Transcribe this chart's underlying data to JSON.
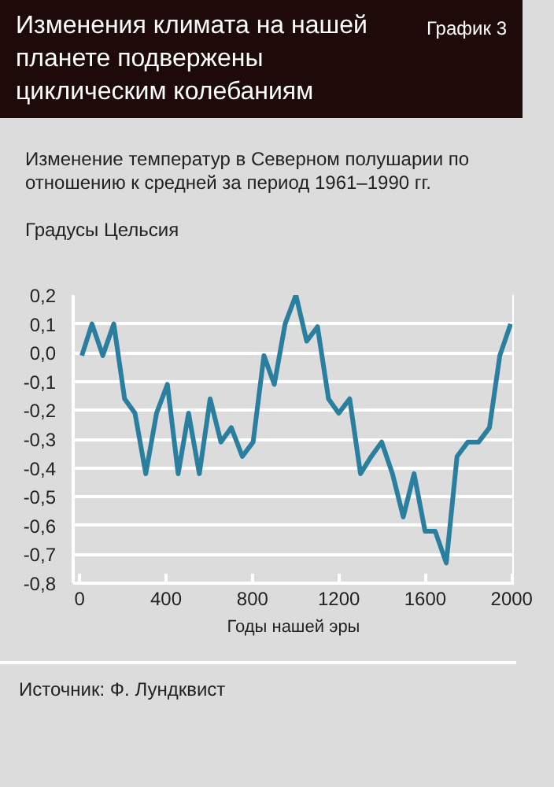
{
  "chart_data": {
    "type": "line",
    "title": "Изменения климата на нашей планете подвержены циклическим колебаниям",
    "subtitle": "Изменение температур в Северном полушарии по отношению к средней за период 1961–1990 гг.",
    "ylabel": "Градусы Цельсия",
    "xlabel": "Годы нашей эры",
    "annotations": [
      "График 3",
      "Источник: Ф. Лундквист"
    ],
    "x": [
      10,
      57,
      107,
      158,
      208,
      256,
      306,
      356,
      406,
      456,
      504,
      554,
      604,
      654,
      702,
      753,
      803,
      853,
      901,
      951,
      1001,
      1051,
      1101,
      1152,
      1199,
      1250,
      1300,
      1350,
      1398,
      1448,
      1498,
      1548,
      1599,
      1646,
      1697,
      1747,
      1797,
      1847,
      1897,
      1945,
      1995
    ],
    "series": [
      {
        "color": "#2a7f9e",
        "values": [
          -0.01,
          0.1,
          -0.01,
          0.1,
          -0.16,
          -0.21,
          -0.42,
          -0.21,
          -0.11,
          -0.42,
          -0.21,
          -0.42,
          -0.16,
          -0.31,
          -0.26,
          -0.36,
          -0.31,
          -0.01,
          -0.11,
          0.1,
          0.2,
          0.04,
          0.09,
          -0.16,
          -0.21,
          -0.16,
          -0.42,
          -0.36,
          -0.31,
          -0.42,
          -0.57,
          -0.42,
          -0.62,
          -0.62,
          -0.73,
          -0.36,
          -0.31,
          -0.31,
          -0.26,
          -0.01,
          0.1
        ]
      }
    ],
    "xlim": [
      -30,
      2010
    ],
    "ylim": [
      -0.8,
      0.2
    ],
    "xticks": [
      0,
      400,
      800,
      1200,
      1600,
      2000
    ],
    "yticks": [
      {
        "value": -0.8,
        "label": "-0,8"
      },
      {
        "value": -0.7,
        "label": "-0,7"
      },
      {
        "value": -0.6,
        "label": "-0,6"
      },
      {
        "value": -0.5,
        "label": "-0,5"
      },
      {
        "value": -0.4,
        "label": "-0,4"
      },
      {
        "value": -0.3,
        "label": "-0,3"
      },
      {
        "value": -0.2,
        "label": "-0,2"
      },
      {
        "value": -0.1,
        "label": "-0,1"
      },
      {
        "value": 0,
        "label": "0,0"
      },
      {
        "value": 0.1,
        "label": "0,1"
      },
      {
        "value": 0.2,
        "label": "0,2"
      }
    ],
    "grid": "y",
    "marker": "none",
    "line_style": "solid"
  }
}
